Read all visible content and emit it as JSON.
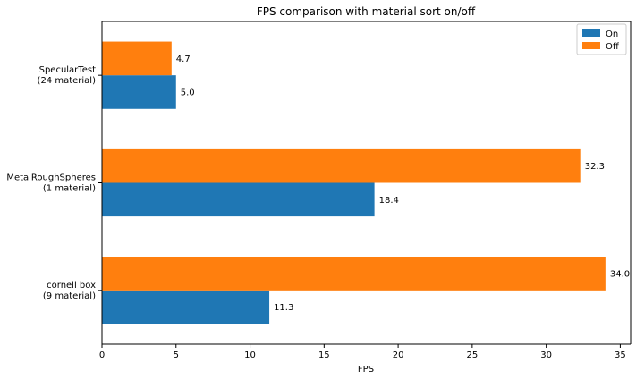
{
  "chart_data": {
    "type": "bar",
    "orientation": "horizontal",
    "title": "FPS comparison with material sort on/off",
    "xlabel": "FPS",
    "ylabel": "",
    "xlim": [
      0,
      35.7
    ],
    "x_ticks": [
      0,
      5,
      10,
      15,
      20,
      25,
      30,
      35
    ],
    "categories": [
      [
        "SpecularTest",
        "(24 material)"
      ],
      [
        "MetalRoughSpheres",
        "(1 material)"
      ],
      [
        "cornell box",
        "(9 material)"
      ]
    ],
    "series": [
      {
        "name": "On",
        "color": "#1f77b4",
        "values": [
          5.0,
          18.4,
          11.3
        ],
        "labels": [
          "5.0",
          "18.4",
          "11.3"
        ]
      },
      {
        "name": "Off",
        "color": "#ff7f0e",
        "values": [
          4.7,
          32.3,
          34.0
        ],
        "labels": [
          "4.7",
          "32.3",
          "34.0"
        ]
      }
    ],
    "grid": false,
    "legend_position": "top-right"
  }
}
